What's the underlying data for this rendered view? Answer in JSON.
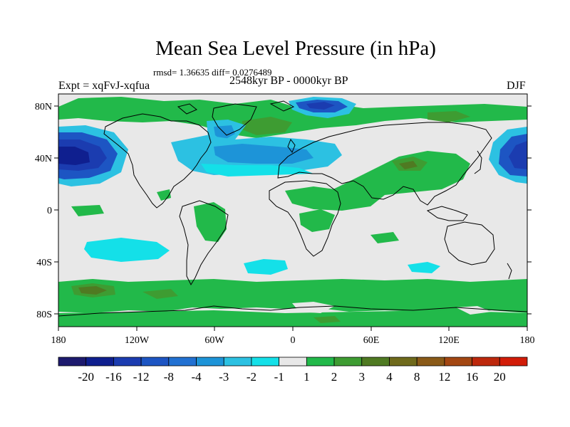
{
  "title": "Mean Sea Level Pressure (in hPa)",
  "stats": "rmsd= 1.36635  diff= 0.0276489",
  "experiment": "Expt = xqFvJ-xqfua",
  "period": "2548kyr BP - 0000kyr BP",
  "season": "DJF",
  "lat_ticks": [
    "80N",
    "40N",
    "0",
    "40S",
    "80S"
  ],
  "lon_ticks": [
    "180",
    "120W",
    "60W",
    "0",
    "60E",
    "120E",
    "180"
  ],
  "colorbar": {
    "colors": [
      "#1d1a6e",
      "#0f1f8f",
      "#1b3cb0",
      "#1d55c3",
      "#2271d2",
      "#1d94d8",
      "#2cc1e2",
      "#14e0e8",
      "#e8e8e8",
      "#22b94a",
      "#3e9c32",
      "#4f7a22",
      "#6f6a1c",
      "#8a5a18",
      "#a34712",
      "#bd280c",
      "#d21c08"
    ],
    "labels": [
      "-20",
      "-16",
      "-12",
      "-8",
      "-4",
      "-3",
      "-2",
      "-1",
      "1",
      "2",
      "3",
      "4",
      "8",
      "12",
      "16",
      "20"
    ]
  }
}
